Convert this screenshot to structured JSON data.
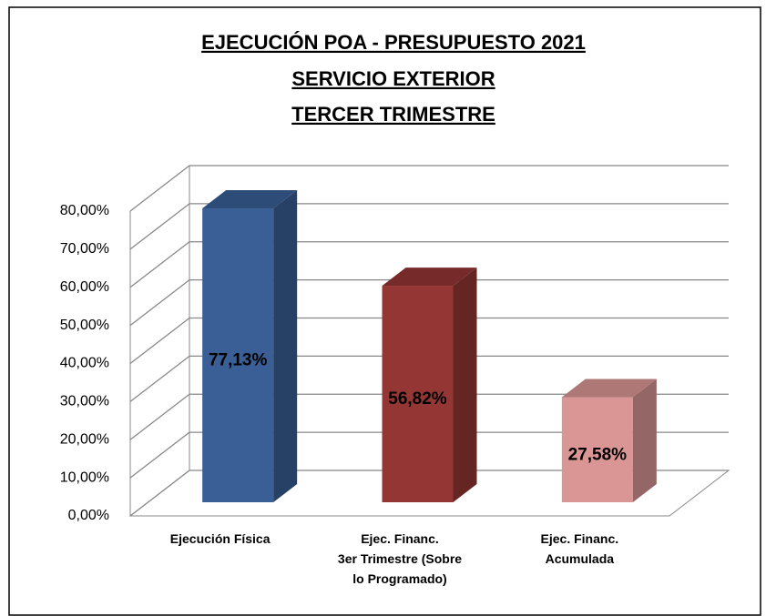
{
  "chart_data": {
    "type": "bar3d",
    "title": [
      "EJECUCIÓN POA - PRESUPUESTO 2021",
      "SERVICIO EXTERIOR",
      "TERCER TRIMESTRE"
    ],
    "categories": [
      "Ejecución Física",
      "Ejec. Financ.\n3er Trimestre (Sobre\nlo Programado)",
      "Ejec. Financ.\nAcumulada"
    ],
    "series": [
      {
        "colors": [
          "#3a5f96",
          "#943634",
          "#d99694"
        ],
        "values": [
          77.13,
          56.82,
          27.58
        ],
        "value_labels": [
          "77,13%",
          "56,82%",
          "27,58%"
        ]
      }
    ],
    "ylim": [
      0,
      80
    ],
    "yticks": [
      {
        "value": 0,
        "label": "0,00%"
      },
      {
        "value": 10,
        "label": "10,00%"
      },
      {
        "value": 20,
        "label": "20,00%"
      },
      {
        "value": 30,
        "label": "30,00%"
      },
      {
        "value": 40,
        "label": "40,00%"
      },
      {
        "value": 50,
        "label": "50,00%"
      },
      {
        "value": 60,
        "label": "60,00%"
      },
      {
        "value": 70,
        "label": "70,00%"
      },
      {
        "value": 80,
        "label": "80,00%"
      }
    ],
    "grid": true
  }
}
